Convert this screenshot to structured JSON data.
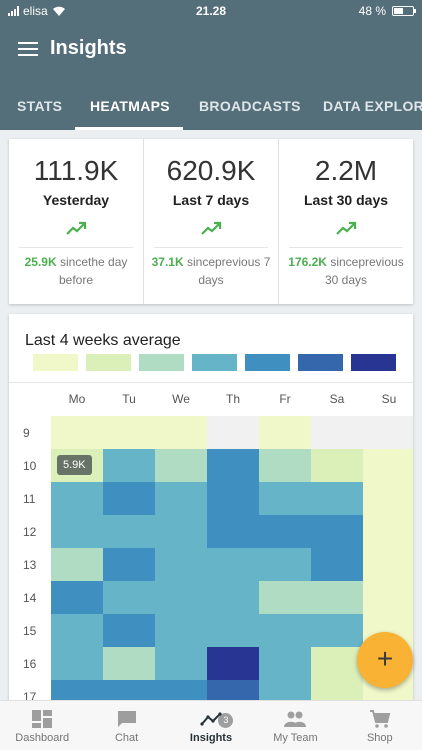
{
  "status_bar": {
    "carrier": "elisa",
    "time": "21.28",
    "battery": "48 %",
    "battery_level": 0.48
  },
  "app_bar": {
    "title": "Insights"
  },
  "tabs": [
    {
      "label": "STATS",
      "active": false
    },
    {
      "label": "HEATMAPS",
      "active": true
    },
    {
      "label": "BROADCASTS",
      "active": false
    },
    {
      "label": "DATA EXPLORE",
      "active": false
    }
  ],
  "stats": [
    {
      "value": "111.9K",
      "label": "Yesterday",
      "change": "25.9K",
      "change_text": " sincethe day before"
    },
    {
      "value": "620.9K",
      "label": "Last 7 days",
      "change": "37.1K",
      "change_text": " sinceprevious 7 days"
    },
    {
      "value": "2.2M",
      "label": "Last 30 days",
      "change": "176.2K",
      "change_text": " sinceprevious 30 days"
    }
  ],
  "heatmap": {
    "title": "Last 4 weeks average",
    "legend_colors": [
      "#f0f7c8",
      "#dbefb8",
      "#b0dcc4",
      "#65b4c8",
      "#3f8fc0",
      "#3567ac",
      "#283593"
    ],
    "days": [
      "Mo",
      "Tu",
      "We",
      "Th",
      "Fr",
      "Sa",
      "Su"
    ],
    "hours": [
      "9",
      "10",
      "11",
      "12",
      "13",
      "14",
      "15",
      "16",
      "17"
    ],
    "levels": [
      [
        1,
        1,
        1,
        -1,
        1,
        -1,
        -1
      ],
      [
        2,
        4,
        3,
        5,
        3,
        2,
        1
      ],
      [
        4,
        5,
        4,
        5,
        4,
        4,
        1
      ],
      [
        4,
        4,
        4,
        5,
        5,
        5,
        1
      ],
      [
        3,
        5,
        4,
        4,
        4,
        5,
        1
      ],
      [
        5,
        4,
        4,
        4,
        3,
        3,
        1
      ],
      [
        4,
        5,
        4,
        4,
        4,
        4,
        1
      ],
      [
        4,
        3,
        4,
        7,
        4,
        2,
        1
      ],
      [
        5,
        5,
        5,
        6,
        4,
        2,
        1
      ]
    ],
    "tooltip": "5.9K"
  },
  "fab": {
    "label": "+"
  },
  "bottom_nav": [
    {
      "label": "Dashboard",
      "icon": "dashboard-icon",
      "active": false
    },
    {
      "label": "Chat",
      "icon": "chat-icon",
      "active": false,
      "badge": "3"
    },
    {
      "label": "Insights",
      "icon": "insights-icon",
      "active": true
    },
    {
      "label": "My Team",
      "icon": "team-icon",
      "active": false
    },
    {
      "label": "Shop",
      "icon": "shop-icon",
      "active": false
    }
  ]
}
